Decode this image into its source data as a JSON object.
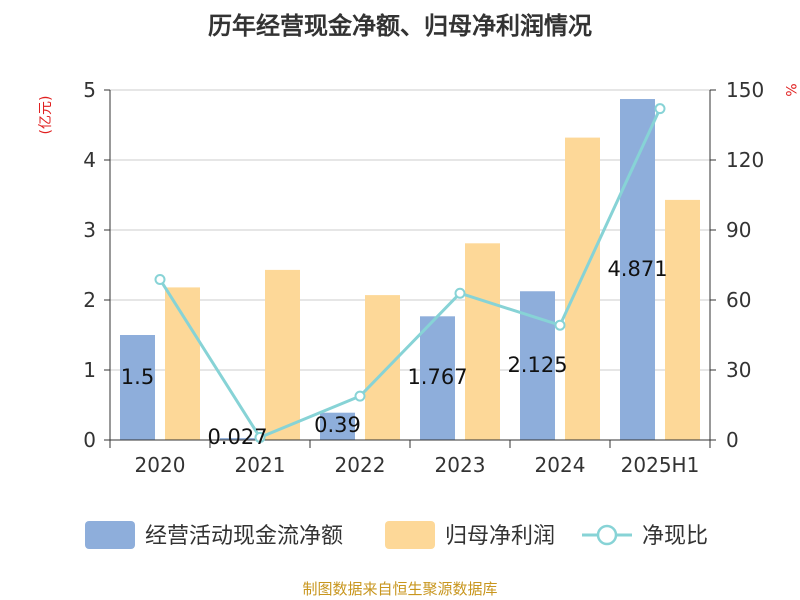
{
  "chart_data": {
    "type": "bar",
    "title": "历年经营现金净额、归母净利润情况",
    "categories": [
      "2020",
      "2021",
      "2022",
      "2023",
      "2024",
      "2025H1"
    ],
    "y_left_label": "(亿元)",
    "y_right_label": "%",
    "ylim_left": [
      0,
      5
    ],
    "ylim_right": [
      0,
      150
    ],
    "yticks_left": [
      "0",
      "1",
      "2",
      "3",
      "4",
      "5"
    ],
    "yticks_right": [
      "0",
      "30",
      "60",
      "90",
      "120",
      "150"
    ],
    "grid": true,
    "legend_position": "bottom",
    "series": [
      {
        "name": "经营活动现金流净额",
        "type": "bar",
        "axis": "left",
        "color": "#8eaedb",
        "values": [
          1.5,
          0.027,
          0.39,
          1.767,
          2.125,
          4.871
        ],
        "labels": [
          "1.5",
          "0.027",
          "0.39",
          "1.767",
          "2.125",
          "4.871"
        ]
      },
      {
        "name": "归母净利润",
        "type": "bar",
        "axis": "left",
        "color": "#fdd898",
        "values": [
          2.18,
          2.43,
          2.07,
          2.81,
          4.32,
          3.43
        ]
      },
      {
        "name": "净现比",
        "type": "line",
        "axis": "right",
        "color": "#87d3d6",
        "values": [
          68.8,
          1.1,
          18.8,
          62.9,
          49.2,
          142.0
        ]
      }
    ],
    "source_note": "制图数据来自恒生聚源数据库",
    "colors": {
      "title": "#333333",
      "axis_unit": "#e02020",
      "source": "#c8961e",
      "grid": "#cccccc",
      "axis": "#333333"
    }
  }
}
